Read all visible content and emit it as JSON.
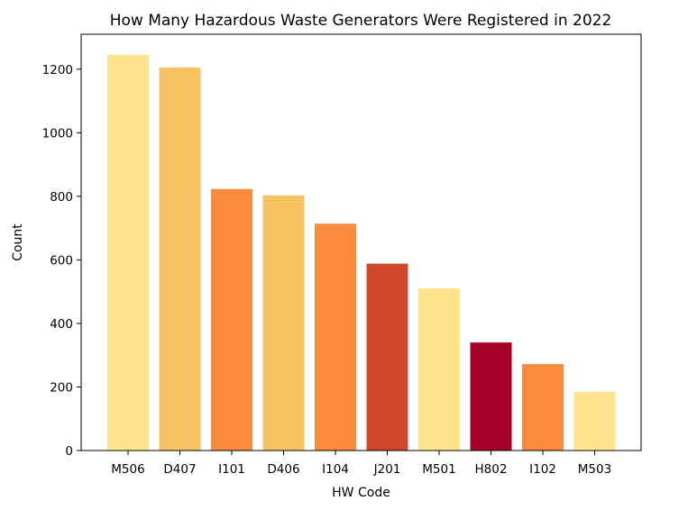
{
  "chart_data": {
    "type": "bar",
    "title": "How Many Hazardous Waste Generators Were Registered in 2022",
    "xlabel": "HW Code",
    "ylabel": "Count",
    "categories": [
      "M506",
      "D407",
      "I101",
      "D406",
      "I104",
      "J201",
      "M501",
      "H802",
      "I102",
      "M503"
    ],
    "values": [
      1245,
      1205,
      823,
      803,
      714,
      588,
      510,
      340,
      272,
      185
    ],
    "colors": [
      "#fde48d",
      "#f6c362",
      "#f98a3e",
      "#f6c362",
      "#f98a3e",
      "#cf472d",
      "#fde48d",
      "#a50026",
      "#f98a3e",
      "#fde48d"
    ],
    "ylim": [
      0,
      1310
    ],
    "yticks": [
      0,
      200,
      400,
      600,
      800,
      1000,
      1200
    ],
    "grid": false,
    "legend": "none"
  }
}
